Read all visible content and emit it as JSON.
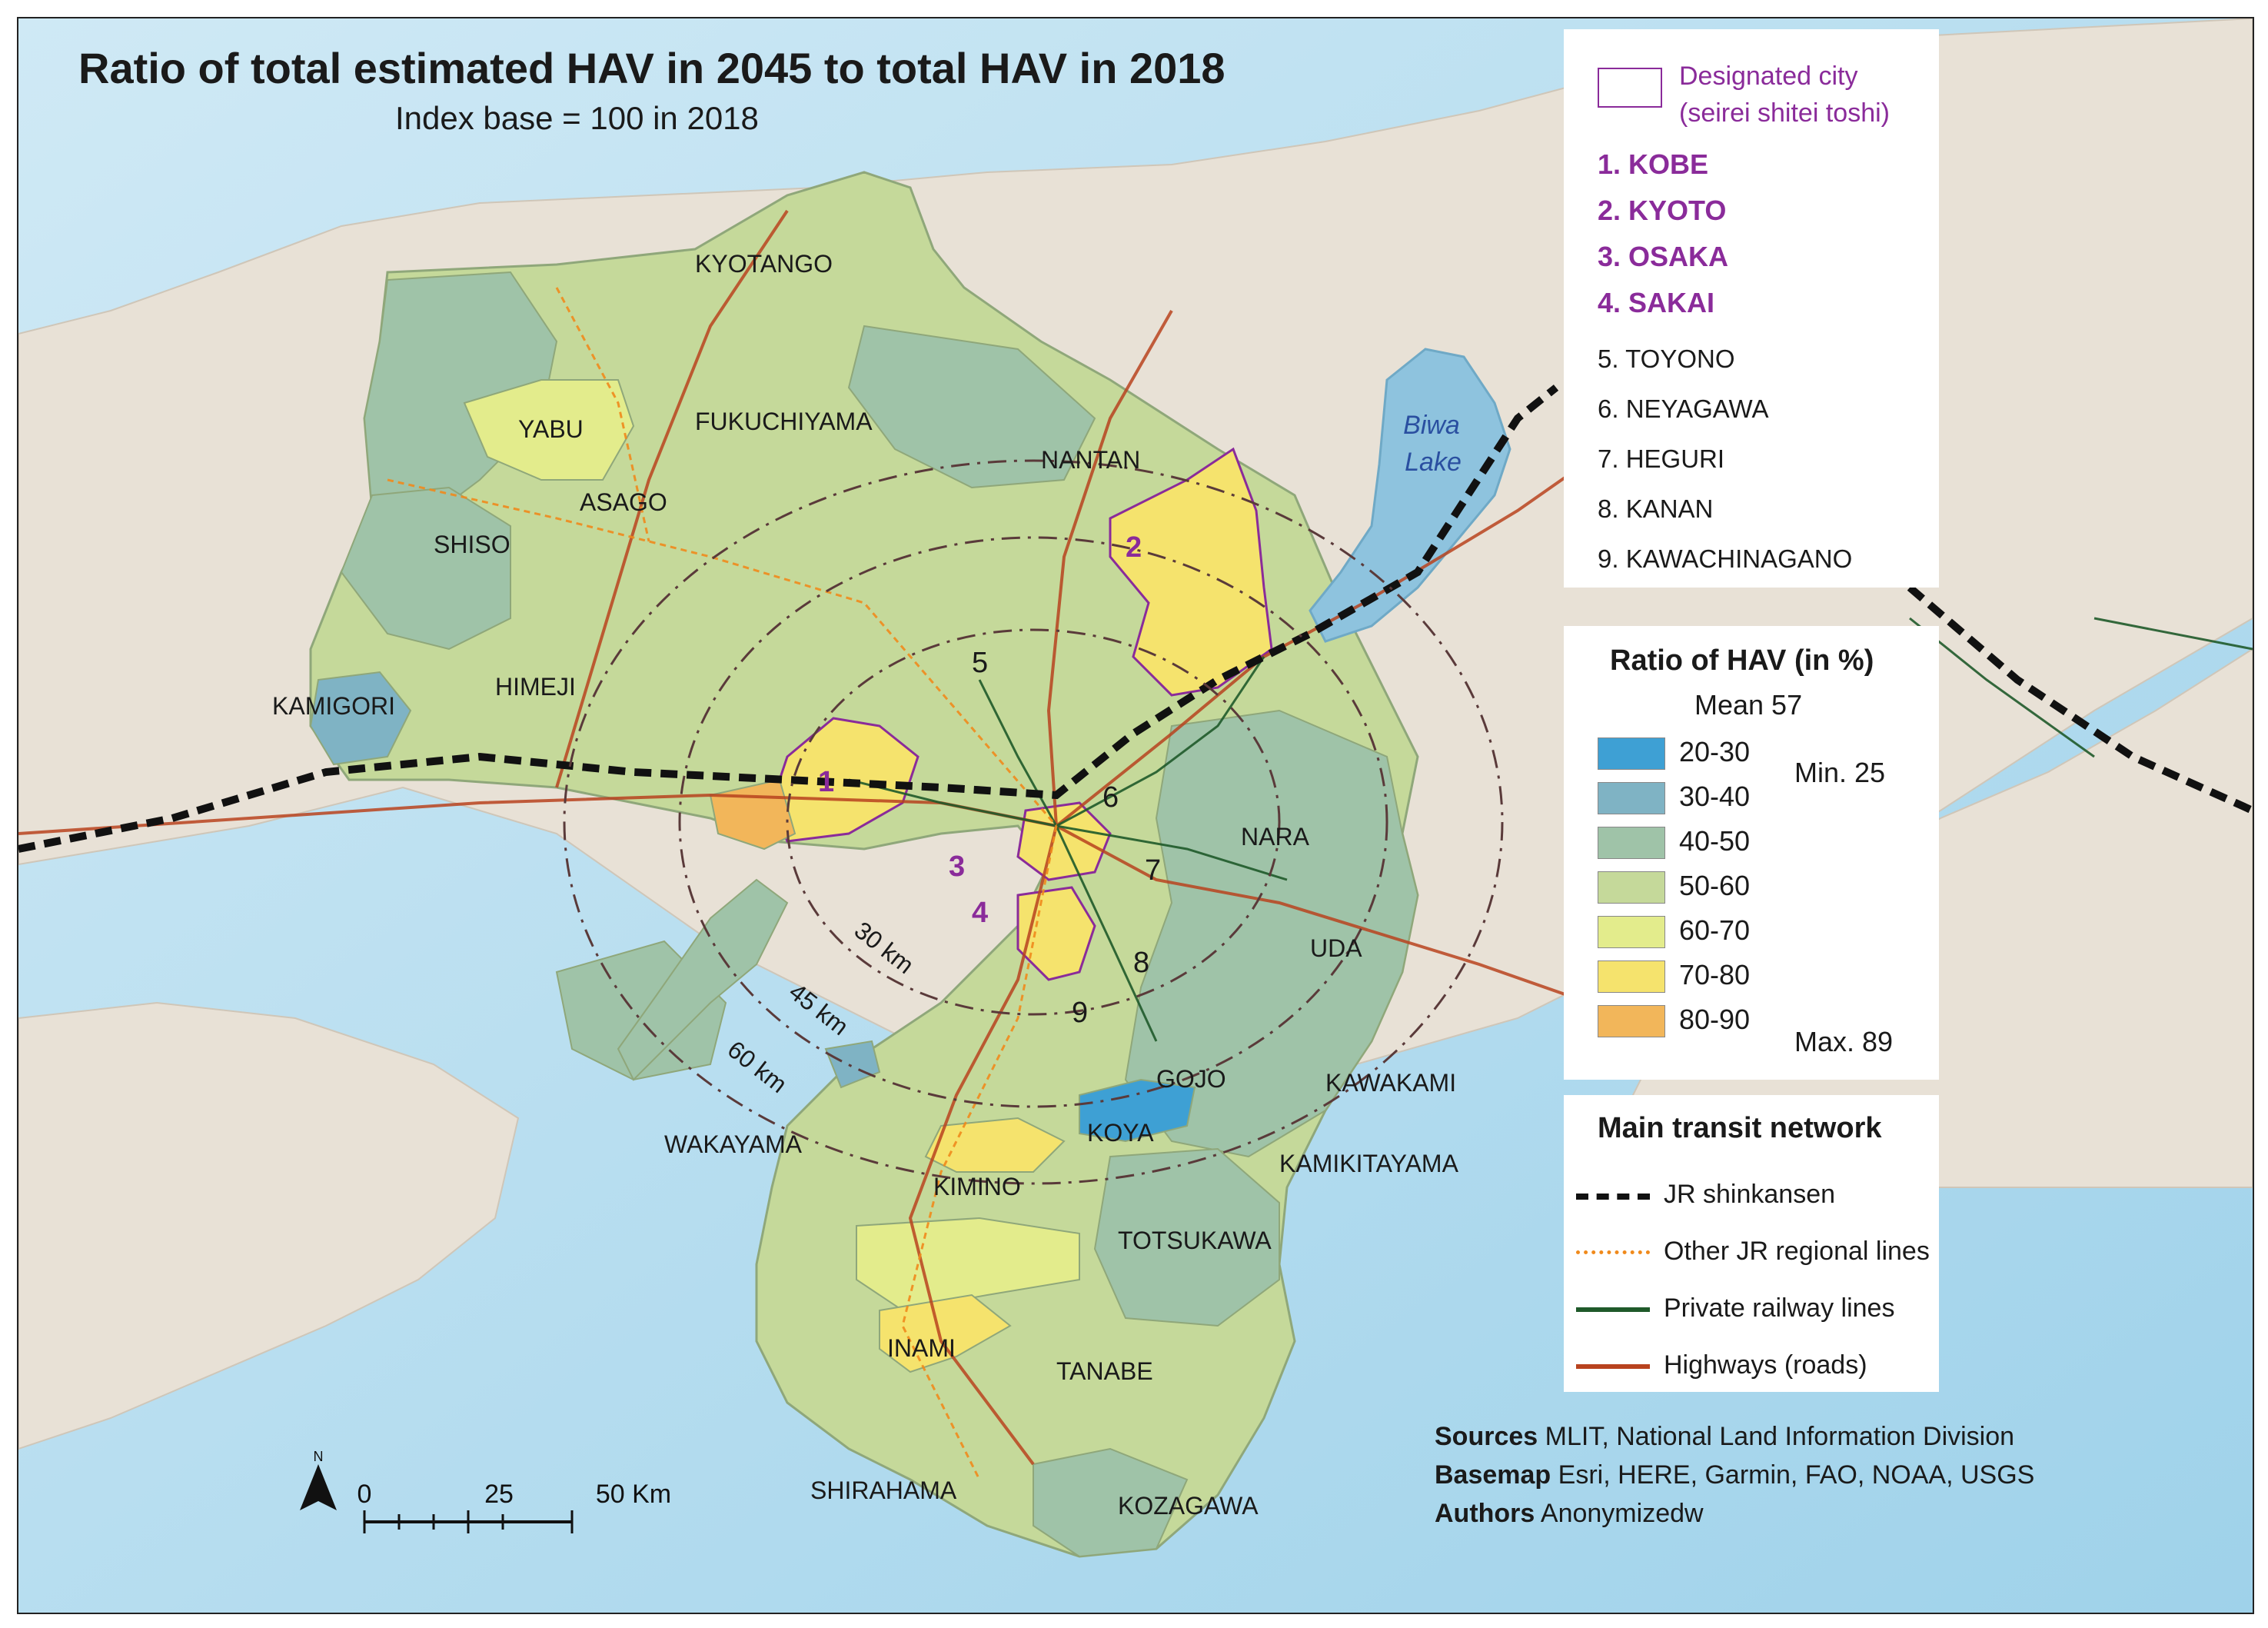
{
  "title": "Ratio of total estimated HAV in 2045 to total HAV in 2018",
  "subtitle": "Index base = 100 in 2018",
  "cities_legend": {
    "designated_label_1": "Designated city",
    "designated_label_2": "(seirei shitei toshi)",
    "designated_cities": [
      "1. KOBE",
      "2. KYOTO",
      "3. OSAKA",
      "4. SAKAI"
    ],
    "other_cities": [
      "5. TOYONO",
      "6. NEYAGAWA",
      "7. HEGURI",
      "8. KANAN",
      "9. KAWACHINAGANO"
    ]
  },
  "ratio_legend": {
    "title": "Ratio of HAV (in %)",
    "mean": "Mean 57",
    "min": "Min. 25",
    "max": "Max. 89",
    "classes": [
      {
        "label": "20-30",
        "color": "#3ea0d4"
      },
      {
        "label": "30-40",
        "color": "#7fb3c4"
      },
      {
        "label": "40-50",
        "color": "#9fc3a8"
      },
      {
        "label": "50-60",
        "color": "#c5d99a"
      },
      {
        "label": "60-70",
        "color": "#e3ec8c"
      },
      {
        "label": "70-80",
        "color": "#f5e36d"
      },
      {
        "label": "80-90",
        "color": "#f2b65a"
      }
    ]
  },
  "transit_legend": {
    "title": "Main transit network",
    "items": [
      {
        "label": "JR shinkansen",
        "color": "#111111"
      },
      {
        "label": "Other JR regional lines",
        "color": "#f08a1c"
      },
      {
        "label": "Private railway lines",
        "color": "#1f5a2a"
      },
      {
        "label": "Highways (roads)",
        "color": "#b8431f"
      }
    ]
  },
  "credits": [
    {
      "key": "Sources",
      "value": "MLIT, National Land Information Division"
    },
    {
      "key": "Basemap",
      "value": "Esri, HERE, Garmin, FAO, NOAA, USGS"
    },
    {
      "key": "Authors",
      "value": "Anonymizedw"
    }
  ],
  "scale_bar": {
    "north": "N",
    "ticks": [
      "0",
      "25",
      "50 Km"
    ]
  },
  "rings": [
    "30 km",
    "45 km",
    "60 km"
  ],
  "lake": [
    "Biwa",
    "Lake"
  ],
  "map_labels": {
    "kyotango": "KYOTANGO",
    "yabu": "YABU",
    "fukuchiyama": "FUKUCHIYAMA",
    "nantan": "NANTAN",
    "asago": "ASAGO",
    "shiso": "SHISO",
    "himeji": "HIMEJI",
    "kamigori": "KAMIGORI",
    "nara": "NARA",
    "uda": "UDA",
    "gojo": "GOJO",
    "kawakami": "KAWAKAMI",
    "koya": "KOYA",
    "wakayama": "WAKAYAMA",
    "kimino": "KIMINO",
    "kamikitayama": "KAMIKITAYAMA",
    "totsukawa": "TOTSUKAWA",
    "inami": "INAMI",
    "tanabe": "TANABE",
    "shirahama": "SHIRAHAMA",
    "kozagawa": "KOZAGAWA"
  },
  "map_numbers": [
    "1",
    "2",
    "3",
    "4",
    "5",
    "6",
    "7",
    "8",
    "9"
  ]
}
